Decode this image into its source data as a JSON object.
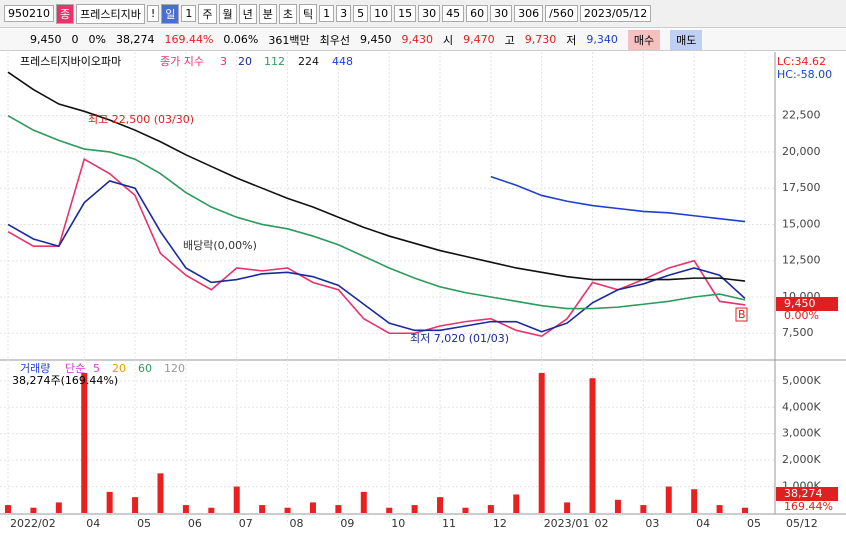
{
  "toolbar": {
    "items": [
      "950210",
      "종",
      "프레스티지바",
      "!",
      "일",
      "1",
      "주",
      "월",
      "년",
      "분",
      "초",
      "틱",
      "1",
      "3",
      "5",
      "10",
      "15",
      "30",
      "45",
      "60",
      "30",
      "306",
      "/560",
      "2023/05/12"
    ]
  },
  "quote": {
    "items": [
      "9,450",
      "0",
      "0%",
      "38,274",
      "169.44%",
      "0.06%",
      "361백만",
      "최우선",
      "9,450",
      "9,430",
      "시",
      "9,470",
      "고",
      "9,730",
      "저",
      "9,340",
      "매수",
      "매도"
    ]
  },
  "price_chart": {
    "type": "line",
    "stock_name": "프레스티지바이오파마",
    "legend_prefix": "종가 지수",
    "categories": [
      "2022/02",
      null,
      null,
      "04",
      null,
      "05",
      null,
      "06",
      null,
      "07",
      null,
      "08",
      null,
      "09",
      null,
      "10",
      null,
      "11",
      null,
      "12",
      null,
      "2023/01",
      null,
      "02",
      null,
      "03",
      null,
      "04",
      null,
      "05"
    ],
    "series": [
      {
        "name": "3",
        "color": "#e8336b",
        "values": [
          14500,
          13500,
          13500,
          19500,
          18500,
          17000,
          13000,
          11500,
          10500,
          12000,
          11800,
          12000,
          11000,
          10500,
          8500,
          7500,
          7500,
          8000,
          8300,
          8500,
          7700,
          7300,
          8500,
          11000,
          10500,
          11200,
          12000,
          12500,
          9700,
          9450
        ]
      },
      {
        "name": "20",
        "color": "#1a2a9c",
        "values": [
          15000,
          14000,
          13500,
          16500,
          18000,
          17500,
          14500,
          12000,
          11000,
          11200,
          11600,
          11700,
          11400,
          10800,
          9500,
          8200,
          7700,
          7700,
          8000,
          8300,
          8300,
          7600,
          8200,
          9600,
          10500,
          10900,
          11500,
          12000,
          11500,
          9900
        ]
      },
      {
        "name": "112",
        "color": "#2e9a5c",
        "values": [
          22500,
          21500,
          20800,
          20200,
          20000,
          19500,
          18500,
          17200,
          16200,
          15500,
          15000,
          14700,
          14200,
          13600,
          12800,
          12000,
          11300,
          10700,
          10300,
          10000,
          9700,
          9400,
          9200,
          9200,
          9300,
          9500,
          9700,
          10000,
          10200,
          9800
        ]
      },
      {
        "name": "224",
        "color": "#111111",
        "values": [
          25500,
          24300,
          23300,
          22800,
          22200,
          21500,
          20700,
          19800,
          19000,
          18200,
          17500,
          16800,
          16200,
          15500,
          14800,
          14200,
          13700,
          13200,
          12800,
          12400,
          12000,
          11700,
          11400,
          11200,
          11200,
          11200,
          11200,
          11300,
          11300,
          11100
        ]
      },
      {
        "name": "448",
        "color": "#1f3fd0",
        "values": [
          null,
          null,
          null,
          null,
          null,
          null,
          null,
          null,
          null,
          null,
          null,
          null,
          null,
          null,
          null,
          null,
          null,
          null,
          null,
          18300,
          17700,
          17000,
          16600,
          16300,
          16100,
          15900,
          15800,
          15600,
          15400,
          15200
        ]
      }
    ],
    "ylim": [
      6000,
      26200
    ],
    "yticks": [
      {
        "value": 7500,
        "label": "7,500"
      },
      {
        "value": 10000,
        "label": "10,000"
      },
      {
        "value": 12500,
        "label": "12,500"
      },
      {
        "value": 15000,
        "label": "15,000"
      },
      {
        "value": 17500,
        "label": "17,500"
      },
      {
        "value": 20000,
        "label": "20,000"
      },
      {
        "value": 22500,
        "label": "22,500"
      }
    ],
    "high_label": "최고 22,500 (03/30)",
    "low_label": "최저 7,020 (01/03)",
    "dividend_label": "배당락(0,00%)",
    "last_price_label": "9,450",
    "change_label": "0.00%",
    "lc_label": "LC:34.62",
    "hc_label": "HC:-58.00",
    "marker": "B"
  },
  "volume_chart": {
    "type": "bar",
    "legend_title": "거래량",
    "legend_prefix": "단순",
    "ma_names": [
      {
        "name": "5",
        "color": "#d040d0"
      },
      {
        "name": "20",
        "color": "#e0a000"
      },
      {
        "name": "60",
        "color": "#2e9a5c"
      },
      {
        "name": "120",
        "color": "#999999"
      }
    ],
    "info_label": "38,274주(169.44%)",
    "color": "#e82020",
    "values": [
      300,
      200,
      400,
      5300,
      800,
      600,
      1500,
      300,
      200,
      1000,
      300,
      200,
      400,
      300,
      800,
      200,
      300,
      600,
      200,
      300,
      700,
      5300,
      400,
      5100,
      500,
      300,
      1000,
      900,
      300,
      200
    ],
    "ylim": [
      0,
      5600
    ],
    "yticks": [
      {
        "value": 1000,
        "label": "1,000K"
      },
      {
        "value": 2000,
        "label": "2,000K"
      },
      {
        "value": 3000,
        "label": "3,000K"
      },
      {
        "value": 4000,
        "label": "4,000K"
      },
      {
        "value": 5000,
        "label": "5,000K"
      }
    ],
    "last_volume_label": "38,274",
    "ratio_label": "169.44%",
    "axis_end_label": "05/12"
  }
}
